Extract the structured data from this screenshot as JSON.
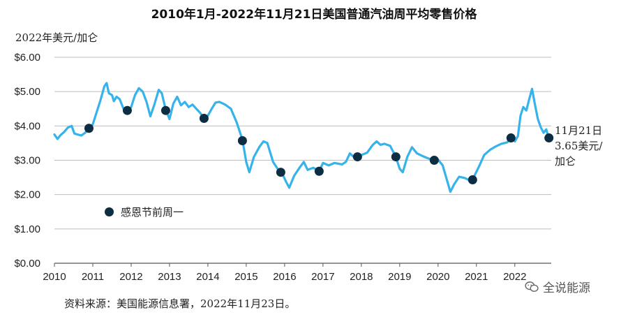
{
  "chart_data": {
    "type": "line",
    "title": "2010年1月-2022年11月21日美国普通汽油周平均零售价格",
    "ylabel": "2022年美元/加仑",
    "ylim": [
      0,
      6
    ],
    "xlim": [
      2010,
      2022.95
    ],
    "y_ticks": [
      "$0.00",
      "$1.00",
      "$2.00",
      "$3.00",
      "$4.00",
      "$5.00",
      "$6.00"
    ],
    "y_tick_values": [
      0,
      1,
      2,
      3,
      4,
      5,
      6
    ],
    "x_ticks": [
      "2010",
      "2011",
      "2012",
      "2013",
      "2014",
      "2015",
      "2016",
      "2017",
      "2018",
      "2019",
      "2020",
      "2021",
      "2022"
    ],
    "x_tick_values": [
      2010,
      2011,
      2012,
      2013,
      2014,
      2015,
      2016,
      2017,
      2018,
      2019,
      2020,
      2021,
      2022
    ],
    "grid": "horizontal",
    "line_color": "#35b3ea",
    "marker_color": "#0d2d43",
    "series": [
      {
        "values": [
          [
            2010.0,
            3.75
          ],
          [
            2010.08,
            3.62
          ],
          [
            2010.15,
            3.72
          ],
          [
            2010.25,
            3.82
          ],
          [
            2010.35,
            3.95
          ],
          [
            2010.45,
            4.0
          ],
          [
            2010.52,
            3.78
          ],
          [
            2010.6,
            3.75
          ],
          [
            2010.7,
            3.72
          ],
          [
            2010.8,
            3.8
          ],
          [
            2010.9,
            3.93
          ],
          [
            2011.0,
            4.05
          ],
          [
            2011.1,
            4.4
          ],
          [
            2011.2,
            4.75
          ],
          [
            2011.3,
            5.15
          ],
          [
            2011.36,
            5.25
          ],
          [
            2011.42,
            4.95
          ],
          [
            2011.5,
            4.9
          ],
          [
            2011.55,
            4.72
          ],
          [
            2011.62,
            4.85
          ],
          [
            2011.7,
            4.78
          ],
          [
            2011.8,
            4.5
          ],
          [
            2011.9,
            4.45
          ],
          [
            2012.0,
            4.55
          ],
          [
            2012.1,
            4.9
          ],
          [
            2012.2,
            5.1
          ],
          [
            2012.3,
            5.0
          ],
          [
            2012.4,
            4.7
          ],
          [
            2012.5,
            4.28
          ],
          [
            2012.6,
            4.6
          ],
          [
            2012.72,
            5.05
          ],
          [
            2012.8,
            4.95
          ],
          [
            2012.9,
            4.48
          ],
          [
            2013.0,
            4.2
          ],
          [
            2013.1,
            4.65
          ],
          [
            2013.2,
            4.85
          ],
          [
            2013.3,
            4.6
          ],
          [
            2013.4,
            4.7
          ],
          [
            2013.5,
            4.55
          ],
          [
            2013.6,
            4.62
          ],
          [
            2013.7,
            4.5
          ],
          [
            2013.8,
            4.38
          ],
          [
            2013.9,
            4.22
          ],
          [
            2014.0,
            4.3
          ],
          [
            2014.1,
            4.5
          ],
          [
            2014.2,
            4.68
          ],
          [
            2014.3,
            4.7
          ],
          [
            2014.45,
            4.62
          ],
          [
            2014.6,
            4.5
          ],
          [
            2014.75,
            4.1
          ],
          [
            2014.9,
            3.6
          ],
          [
            2015.0,
            2.95
          ],
          [
            2015.08,
            2.65
          ],
          [
            2015.2,
            3.1
          ],
          [
            2015.35,
            3.4
          ],
          [
            2015.45,
            3.55
          ],
          [
            2015.55,
            3.5
          ],
          [
            2015.7,
            2.95
          ],
          [
            2015.85,
            2.7
          ],
          [
            2015.92,
            2.65
          ],
          [
            2016.05,
            2.35
          ],
          [
            2016.12,
            2.2
          ],
          [
            2016.25,
            2.55
          ],
          [
            2016.4,
            2.8
          ],
          [
            2016.5,
            2.95
          ],
          [
            2016.6,
            2.72
          ],
          [
            2016.75,
            2.78
          ],
          [
            2016.9,
            2.68
          ],
          [
            2017.0,
            2.92
          ],
          [
            2017.15,
            2.85
          ],
          [
            2017.3,
            2.92
          ],
          [
            2017.5,
            2.88
          ],
          [
            2017.6,
            2.96
          ],
          [
            2017.7,
            3.2
          ],
          [
            2017.8,
            3.1
          ],
          [
            2017.9,
            3.1
          ],
          [
            2018.0,
            3.15
          ],
          [
            2018.15,
            3.22
          ],
          [
            2018.3,
            3.45
          ],
          [
            2018.4,
            3.55
          ],
          [
            2018.5,
            3.45
          ],
          [
            2018.6,
            3.48
          ],
          [
            2018.75,
            3.42
          ],
          [
            2018.9,
            3.1
          ],
          [
            2019.0,
            2.75
          ],
          [
            2019.08,
            2.65
          ],
          [
            2019.2,
            3.1
          ],
          [
            2019.32,
            3.38
          ],
          [
            2019.45,
            3.2
          ],
          [
            2019.6,
            3.12
          ],
          [
            2019.75,
            3.05
          ],
          [
            2019.9,
            3.0
          ],
          [
            2020.0,
            3.02
          ],
          [
            2020.12,
            2.85
          ],
          [
            2020.25,
            2.35
          ],
          [
            2020.32,
            2.08
          ],
          [
            2020.42,
            2.3
          ],
          [
            2020.55,
            2.52
          ],
          [
            2020.7,
            2.48
          ],
          [
            2020.85,
            2.4
          ],
          [
            2020.95,
            2.55
          ],
          [
            2021.08,
            2.85
          ],
          [
            2021.2,
            3.15
          ],
          [
            2021.35,
            3.3
          ],
          [
            2021.5,
            3.4
          ],
          [
            2021.65,
            3.48
          ],
          [
            2021.8,
            3.52
          ],
          [
            2021.9,
            3.65
          ],
          [
            2022.0,
            3.55
          ],
          [
            2022.08,
            3.7
          ],
          [
            2022.15,
            4.3
          ],
          [
            2022.22,
            4.55
          ],
          [
            2022.3,
            4.45
          ],
          [
            2022.38,
            4.8
          ],
          [
            2022.45,
            5.08
          ],
          [
            2022.52,
            4.65
          ],
          [
            2022.6,
            4.2
          ],
          [
            2022.68,
            3.95
          ],
          [
            2022.75,
            3.8
          ],
          [
            2022.82,
            3.9
          ],
          [
            2022.88,
            3.65
          ]
        ]
      }
    ],
    "markers": [
      {
        "x": 2010.9,
        "y": 3.93
      },
      {
        "x": 2011.9,
        "y": 4.45
      },
      {
        "x": 2012.9,
        "y": 4.45
      },
      {
        "x": 2013.9,
        "y": 4.22
      },
      {
        "x": 2014.9,
        "y": 3.57
      },
      {
        "x": 2015.9,
        "y": 2.65
      },
      {
        "x": 2016.9,
        "y": 2.68
      },
      {
        "x": 2017.9,
        "y": 3.1
      },
      {
        "x": 2018.9,
        "y": 3.1
      },
      {
        "x": 2019.9,
        "y": 3.0
      },
      {
        "x": 2020.9,
        "y": 2.43
      },
      {
        "x": 2021.9,
        "y": 3.65
      },
      {
        "x": 2022.89,
        "y": 3.65
      }
    ],
    "legend": {
      "label": "感恩节前周一",
      "position": "bottom-left"
    },
    "annotation": {
      "lines": [
        "11月21日",
        "3.65美元/",
        "加仑"
      ]
    },
    "source": "资料来源：美国能源信息署，2022年11月23日。"
  },
  "watermark": {
    "text": "全说能源",
    "icon": "wechat-icon"
  }
}
